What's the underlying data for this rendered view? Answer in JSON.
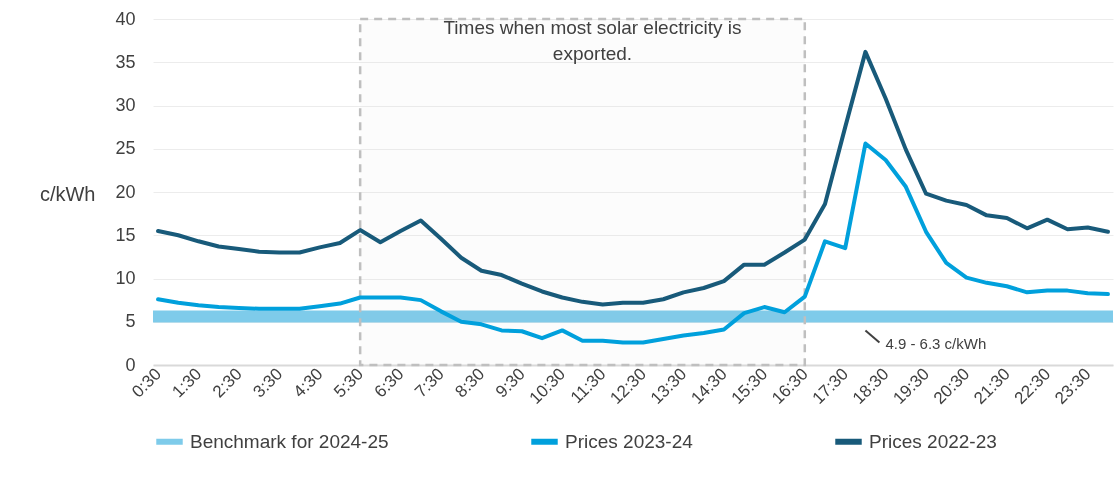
{
  "chart_data": {
    "type": "line",
    "ylabel": "c/kWh",
    "categories": [
      "0:30",
      null,
      "1:30",
      null,
      "2:30",
      null,
      "3:30",
      null,
      "4:30",
      null,
      "5:30",
      null,
      "6:30",
      null,
      "7:30",
      null,
      "8:30",
      null,
      "9:30",
      null,
      "10:30",
      null,
      "11:30",
      null,
      "12:30",
      null,
      "13:30",
      null,
      "14:30",
      null,
      "15:30",
      null,
      "16:30",
      null,
      "17:30",
      null,
      "18:30",
      null,
      "19:30",
      null,
      "20:30",
      null,
      "21:30",
      null,
      "22:30",
      null,
      "23:30",
      null
    ],
    "series": [
      {
        "name": "Prices 2023-24",
        "color": "#00a0dc",
        "values": [
          7.6,
          7.2,
          6.9,
          6.7,
          6.6,
          6.5,
          6.5,
          6.5,
          6.8,
          7.1,
          7.8,
          7.8,
          7.8,
          7.5,
          6.2,
          5.0,
          4.7,
          4.0,
          3.9,
          3.1,
          4.0,
          2.8,
          2.8,
          2.6,
          2.6,
          3.0,
          3.4,
          3.7,
          4.1,
          6.0,
          6.7,
          6.1,
          7.9,
          14.3,
          13.5,
          25.6,
          23.7,
          20.6,
          15.4,
          11.8,
          10.1,
          9.5,
          9.1,
          8.4,
          8.6,
          8.6,
          8.3,
          8.2
        ]
      },
      {
        "name": "Prices 2022-23",
        "color": "#185a7a",
        "values": [
          15.5,
          15.0,
          14.3,
          13.7,
          13.4,
          13.1,
          13.0,
          13.0,
          13.6,
          14.1,
          15.6,
          14.2,
          15.5,
          16.7,
          14.6,
          12.4,
          10.9,
          10.4,
          9.4,
          8.5,
          7.8,
          7.3,
          7.0,
          7.2,
          7.2,
          7.6,
          8.4,
          8.9,
          9.7,
          11.6,
          11.6,
          13.0,
          14.5,
          18.6,
          27.5,
          36.2,
          30.8,
          24.9,
          19.8,
          19.0,
          18.5,
          17.3,
          17.0,
          15.8,
          16.8,
          15.7,
          15.9,
          15.4
        ]
      }
    ],
    "ylim": [
      0,
      40
    ],
    "yticks": [
      0,
      5,
      10,
      15,
      20,
      25,
      30,
      35,
      40
    ],
    "grid": "y",
    "legend": "bottom",
    "bands": [
      {
        "axis": "y",
        "from": 4.9,
        "to": 6.3,
        "label": "Benchmark for 2024-25",
        "color": "#7ecbea"
      },
      {
        "axis": "x",
        "from": "5:30",
        "to": "16:30",
        "label": "Times when most solar electricity is exported.",
        "color": "#bfbfbf"
      }
    ],
    "annotations": [
      {
        "text": "4.9 - 6.3 c/kWh",
        "y": 4.9
      }
    ]
  }
}
